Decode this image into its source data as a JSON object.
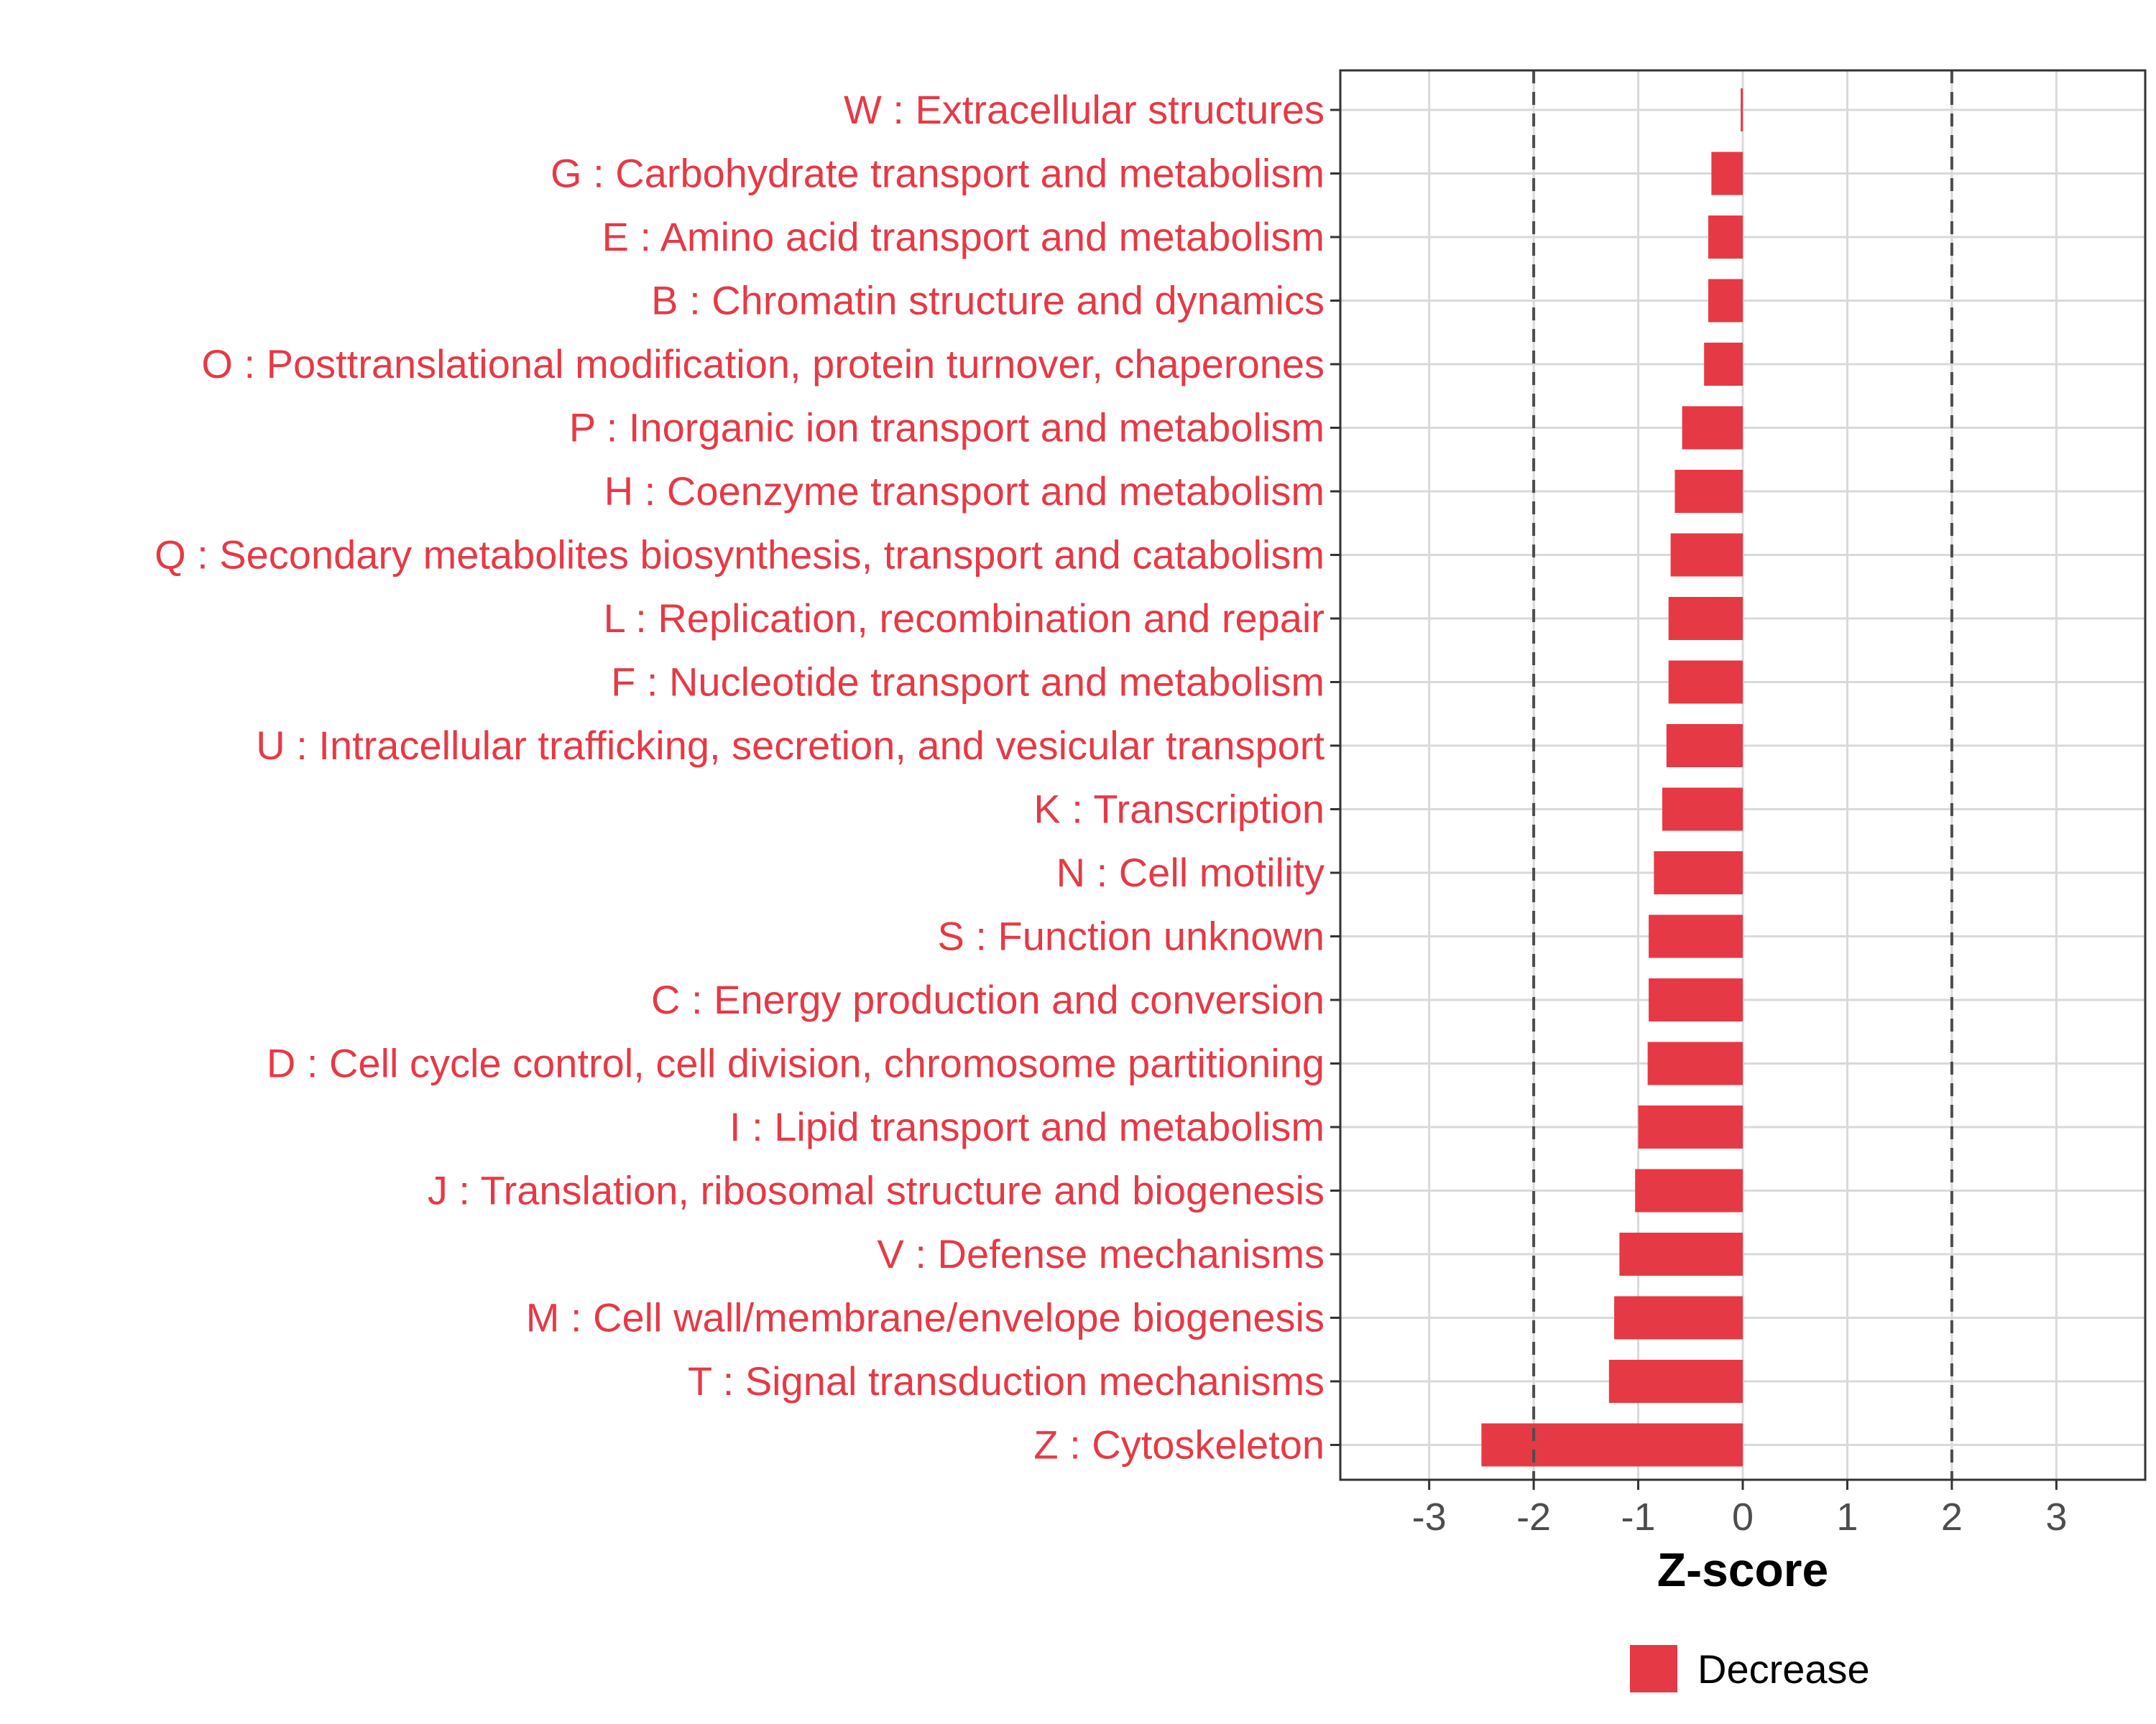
{
  "chart_data": {
    "type": "bar",
    "orientation": "horizontal",
    "categories": [
      "W : Extracellular structures",
      "G : Carbohydrate transport and metabolism",
      "E : Amino acid transport and metabolism",
      "B : Chromatin structure and dynamics",
      "O : Posttranslational modification, protein turnover, chaperones",
      "P : Inorganic ion transport and metabolism",
      "H : Coenzyme transport and metabolism",
      "Q : Secondary metabolites biosynthesis, transport and catabolism",
      "L : Replication, recombination and repair",
      "F : Nucleotide transport and metabolism",
      "U : Intracellular trafficking, secretion, and vesicular transport",
      "K : Transcription",
      "N : Cell motility",
      "S : Function unknown",
      "C : Energy production and conversion",
      "D : Cell cycle control, cell division, chromosome partitioning",
      "I : Lipid transport and metabolism",
      "J : Translation, ribosomal structure and biogenesis",
      "V : Defense mechanisms",
      "M : Cell wall/membrane/envelope biogenesis",
      "T : Signal transduction mechanisms",
      "Z : Cytoskeleton"
    ],
    "values": [
      -0.02,
      -0.3,
      -0.33,
      -0.33,
      -0.37,
      -0.58,
      -0.65,
      -0.69,
      -0.71,
      -0.71,
      -0.73,
      -0.77,
      -0.85,
      -0.9,
      -0.9,
      -0.91,
      -1.0,
      -1.03,
      -1.18,
      -1.23,
      -1.28,
      -2.5
    ],
    "xlabel": "Z-score",
    "ylabel": "",
    "title": "",
    "xlim": [
      -3.85,
      3.85
    ],
    "xticks": [
      -3,
      -2,
      -1,
      0,
      1,
      2,
      3
    ],
    "threshold_lines": [
      -2,
      2
    ],
    "grid": true,
    "legend": {
      "position": "bottom",
      "entries": [
        {
          "name": "Decrease",
          "color": "#e63946"
        }
      ]
    },
    "colors": {
      "bar": "#e63946",
      "category_label": "#e63946",
      "grid": "#d9d9d9",
      "panel_border": "#333333",
      "threshold": "#4d4d4d"
    }
  }
}
